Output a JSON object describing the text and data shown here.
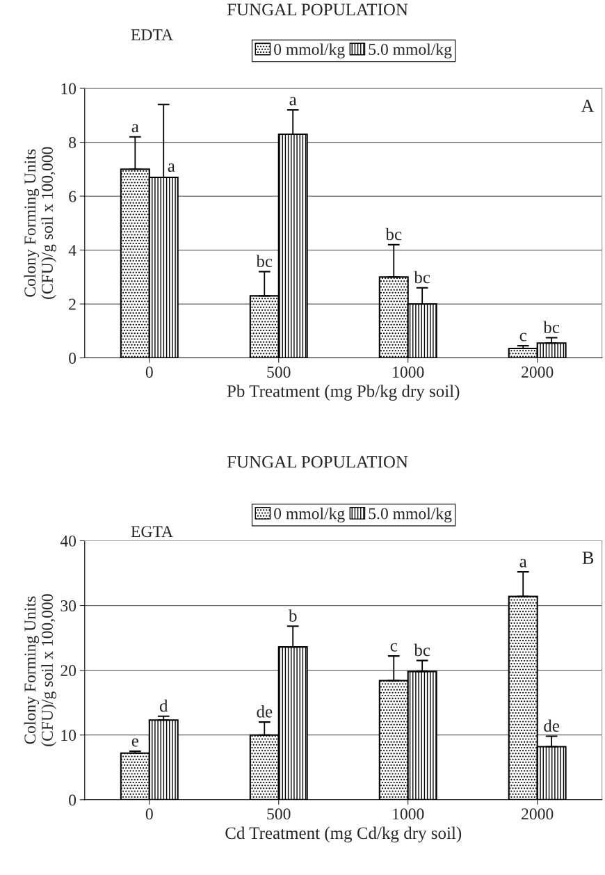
{
  "chart_data": [
    {
      "type": "bar",
      "title": "FUNGAL POPULATION",
      "legend_title": "EDTA",
      "xlabel": "Pb Treatment (mg Pb/kg dry soil)",
      "ylabel": "Colony Forming Units\n(CFU)/g soil x 100,000",
      "categories": [
        "0",
        "500",
        "1000",
        "2000"
      ],
      "series": [
        {
          "name": "0 mmol/kg",
          "color": "#000000",
          "values": [
            7.0,
            2.3,
            3.0,
            0.35
          ],
          "errors": [
            1.2,
            0.9,
            1.2,
            0.1
          ],
          "value_labels": [
            "a",
            "bc",
            "bc",
            "c"
          ]
        },
        {
          "name": "5.0 mmol/kg",
          "color": "#000000",
          "values": [
            6.7,
            8.3,
            2.0,
            0.55
          ],
          "errors": [
            2.7,
            0.9,
            0.6,
            0.2
          ],
          "value_labels": [
            "a",
            "a",
            "bc",
            "bc"
          ]
        }
      ],
      "ylim": [
        0,
        10
      ],
      "yticks": [
        0,
        2,
        4,
        6,
        8,
        10
      ],
      "grid": "y",
      "legend": "top",
      "annotations": [
        "A"
      ]
    },
    {
      "type": "bar",
      "title": "FUNGAL POPULATION",
      "legend_title": "EGTA",
      "xlabel": "Cd Treatment (mg Cd/kg dry soil)",
      "ylabel": "Colony Forming Units\n(CFU)/g soil x 100,000",
      "categories": [
        "0",
        "500",
        "1000",
        "2000"
      ],
      "series": [
        {
          "name": "0 mmol/kg",
          "color": "#000000",
          "values": [
            7.2,
            10.0,
            18.4,
            31.4
          ],
          "errors": [
            0.3,
            2.0,
            3.8,
            3.8
          ],
          "value_labels": [
            "e",
            "de",
            "c",
            "a"
          ]
        },
        {
          "name": "5.0 mmol/kg",
          "color": "#000000",
          "values": [
            12.3,
            23.6,
            19.8,
            8.2
          ],
          "errors": [
            0.6,
            3.2,
            1.7,
            1.6
          ],
          "value_labels": [
            "d",
            "b",
            "bc",
            "de"
          ]
        }
      ],
      "ylim": [
        0,
        40
      ],
      "yticks": [
        0,
        10,
        20,
        30,
        40
      ],
      "grid": "y",
      "legend": "top",
      "annotations": [
        "B"
      ]
    }
  ]
}
